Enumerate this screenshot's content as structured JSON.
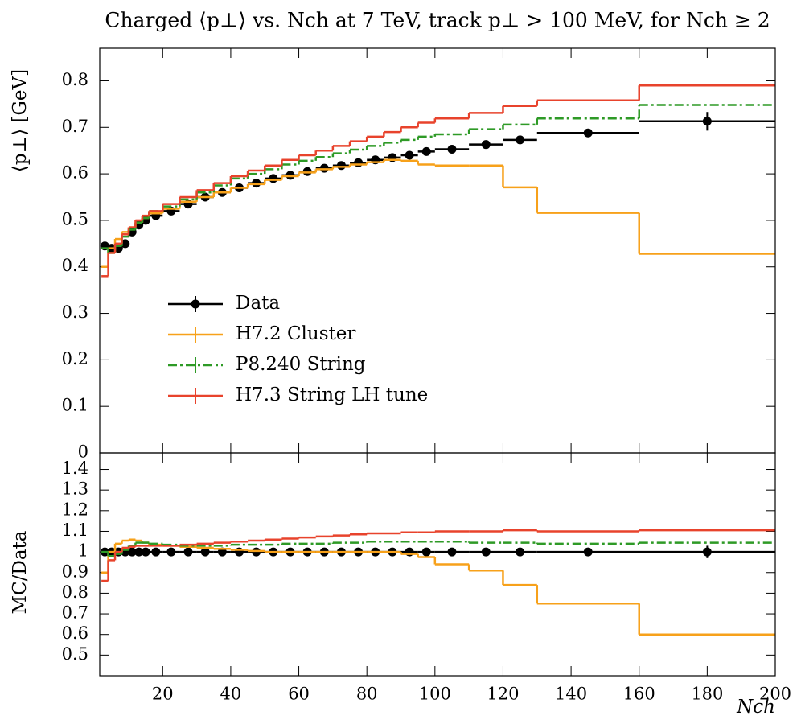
{
  "chart_data": [
    {
      "type": "histogram",
      "title": "Charged ⟨p⊥⟩ vs. Nch at 7 TeV, track p⊥ > 100 MeV, for Nch ≥ 2",
      "y_label": "⟨p⊥⟩   [GeV]",
      "xlim": [
        1.5,
        200
      ],
      "xticks": [
        20,
        40,
        60,
        80,
        100,
        120,
        140,
        160,
        180,
        200
      ],
      "show_xtick_labels": false,
      "ylim": [
        0,
        0.87
      ],
      "yticks": [
        0,
        0.1,
        0.2,
        0.3,
        0.4,
        0.5,
        0.6,
        0.7,
        0.8
      ],
      "legend": "left",
      "bins": [
        2,
        4,
        6,
        8,
        10,
        12,
        14,
        16,
        20,
        25,
        30,
        35,
        40,
        45,
        50,
        55,
        60,
        65,
        70,
        75,
        80,
        85,
        90,
        95,
        100,
        110,
        120,
        130,
        160,
        200
      ],
      "series": [
        {
          "name": "Data",
          "color": "#000000",
          "linestyle": "solid",
          "marker": "circle",
          "values": [
            0.445,
            0.44,
            0.44,
            0.45,
            0.475,
            0.49,
            0.5,
            0.51,
            0.52,
            0.535,
            0.55,
            0.56,
            0.57,
            0.58,
            0.59,
            0.597,
            0.605,
            0.612,
            0.618,
            0.624,
            0.63,
            0.635,
            0.64,
            0.648,
            0.653,
            0.663,
            0.673,
            0.688,
            0.713
          ],
          "errors": [
            0.002,
            0.002,
            0.002,
            0.002,
            0.002,
            0.002,
            0.002,
            0.002,
            0.002,
            0.002,
            0.002,
            0.002,
            0.002,
            0.002,
            0.002,
            0.002,
            0.002,
            0.002,
            0.002,
            0.002,
            0.002,
            0.002,
            0.002,
            0.002,
            0.002,
            0.002,
            0.002,
            0.004,
            0.02
          ]
        },
        {
          "name": "H7.2 Cluster",
          "color": "#f7a11a",
          "linestyle": "solid",
          "values": [
            0.4,
            0.44,
            0.46,
            0.475,
            0.485,
            0.495,
            0.505,
            0.515,
            0.525,
            0.54,
            0.55,
            0.56,
            0.57,
            0.578,
            0.587,
            0.595,
            0.603,
            0.61,
            0.615,
            0.62,
            0.625,
            0.63,
            0.628,
            0.62,
            0.618,
            0.618,
            0.571,
            0.516,
            0.428
          ]
        },
        {
          "name": "P8.240 String",
          "color": "#2e9a26",
          "linestyle": "dashdot",
          "values": [
            0.44,
            0.43,
            0.445,
            0.465,
            0.48,
            0.495,
            0.505,
            0.52,
            0.53,
            0.545,
            0.56,
            0.575,
            0.59,
            0.6,
            0.61,
            0.62,
            0.628,
            0.636,
            0.644,
            0.652,
            0.66,
            0.667,
            0.673,
            0.68,
            0.685,
            0.696,
            0.706,
            0.719,
            0.748
          ]
        },
        {
          "name": "H7.3 String LH tune",
          "color": "#e8432c",
          "linestyle": "solid",
          "values": [
            0.38,
            0.43,
            0.45,
            0.47,
            0.485,
            0.5,
            0.51,
            0.52,
            0.535,
            0.55,
            0.565,
            0.58,
            0.595,
            0.607,
            0.618,
            0.63,
            0.64,
            0.65,
            0.66,
            0.67,
            0.68,
            0.69,
            0.7,
            0.71,
            0.719,
            0.731,
            0.746,
            0.758,
            0.79
          ]
        }
      ]
    },
    {
      "type": "histogram",
      "y_label": "MC/Data",
      "x_label": "Nch",
      "xlim": [
        1.5,
        200
      ],
      "xticks": [
        20,
        40,
        60,
        80,
        100,
        120,
        140,
        160,
        180,
        200
      ],
      "show_xtick_labels": true,
      "ylim": [
        0.4,
        1.48
      ],
      "yticks": [
        0.5,
        0.6,
        0.7,
        0.8,
        0.9,
        1,
        1.1,
        1.2,
        1.3,
        1.4
      ],
      "bins": [
        2,
        4,
        6,
        8,
        10,
        12,
        14,
        16,
        20,
        25,
        30,
        35,
        40,
        45,
        50,
        55,
        60,
        65,
        70,
        75,
        80,
        85,
        90,
        95,
        100,
        110,
        120,
        130,
        160,
        200
      ],
      "series": [
        {
          "color": "#000000",
          "linestyle": "solid",
          "marker": "circle",
          "values": [
            1,
            1,
            1,
            1,
            1,
            1,
            1,
            1,
            1,
            1,
            1,
            1,
            1,
            1,
            1,
            1,
            1,
            1,
            1,
            1,
            1,
            1,
            1,
            1,
            1,
            1,
            1,
            1,
            1
          ],
          "errors": [
            0.003,
            0.003,
            0.003,
            0.003,
            0.003,
            0.003,
            0.003,
            0.003,
            0.003,
            0.003,
            0.003,
            0.003,
            0.003,
            0.003,
            0.003,
            0.003,
            0.003,
            0.003,
            0.003,
            0.003,
            0.003,
            0.003,
            0.003,
            0.003,
            0.003,
            0.003,
            0.003,
            0.006,
            0.03
          ]
        },
        {
          "color": "#f7a11a",
          "linestyle": "solid",
          "values": [
            0.9,
            1.0,
            1.04,
            1.055,
            1.06,
            1.055,
            1.045,
            1.035,
            1.03,
            1.025,
            1.02,
            1.015,
            1.01,
            1.005,
            1.0,
            1.0,
            1.0,
            1.0,
            1.0,
            1.0,
            1.0,
            1.0,
            0.99,
            0.975,
            0.94,
            0.91,
            0.84,
            0.75,
            0.6
          ]
        },
        {
          "color": "#2e9a26",
          "linestyle": "dashdot",
          "values": [
            1.0,
            0.98,
            0.99,
            1.01,
            1.03,
            1.045,
            1.045,
            1.04,
            1.035,
            1.03,
            1.03,
            1.03,
            1.035,
            1.035,
            1.035,
            1.04,
            1.04,
            1.04,
            1.045,
            1.045,
            1.05,
            1.05,
            1.05,
            1.05,
            1.05,
            1.045,
            1.045,
            1.04,
            1.045
          ]
        },
        {
          "color": "#e8432c",
          "linestyle": "solid",
          "values": [
            0.86,
            0.96,
            1.0,
            1.02,
            1.025,
            1.03,
            1.03,
            1.03,
            1.03,
            1.035,
            1.04,
            1.045,
            1.05,
            1.055,
            1.06,
            1.065,
            1.07,
            1.075,
            1.08,
            1.085,
            1.09,
            1.09,
            1.095,
            1.095,
            1.1,
            1.1,
            1.105,
            1.1,
            1.105
          ]
        }
      ]
    }
  ]
}
